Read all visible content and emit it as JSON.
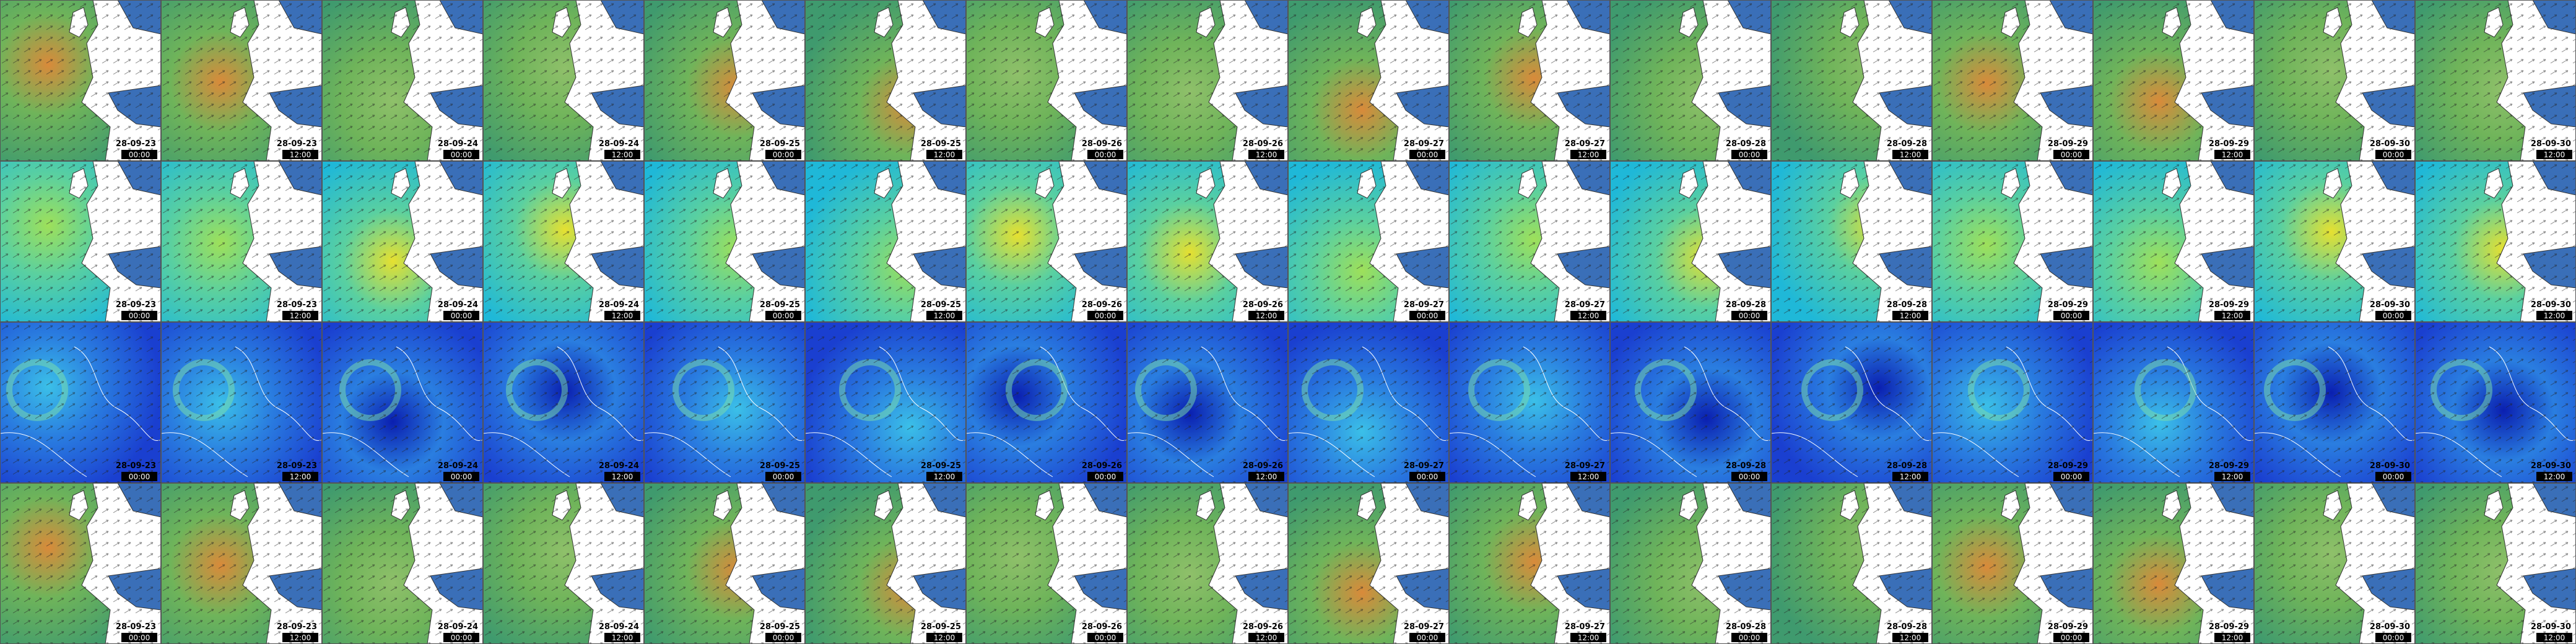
{
  "tiles": [
    {
      "date": "28-09-23",
      "time": "00:00"
    },
    {
      "date": "28-09-23",
      "time": "12:00"
    },
    {
      "date": "28-09-24",
      "time": "00:00"
    },
    {
      "date": "28-09-24",
      "time": "12:00"
    },
    {
      "date": "28-09-25",
      "time": "00:00"
    },
    {
      "date": "28-09-25",
      "time": "12:00"
    },
    {
      "date": "28-09-26",
      "time": "00:00"
    },
    {
      "date": "28-09-26",
      "time": "12:00"
    },
    {
      "date": "28-09-27",
      "time": "00:00"
    },
    {
      "date": "28-09-27",
      "time": "12:00"
    },
    {
      "date": "28-09-28",
      "time": "00:00"
    },
    {
      "date": "28-09-28",
      "time": "12:00"
    },
    {
      "date": "28-09-29",
      "time": "00:00"
    },
    {
      "date": "28-09-29",
      "time": "12:00"
    },
    {
      "date": "28-09-30",
      "time": "00:00"
    },
    {
      "date": "28-09-30",
      "time": "12:00"
    }
  ]
}
